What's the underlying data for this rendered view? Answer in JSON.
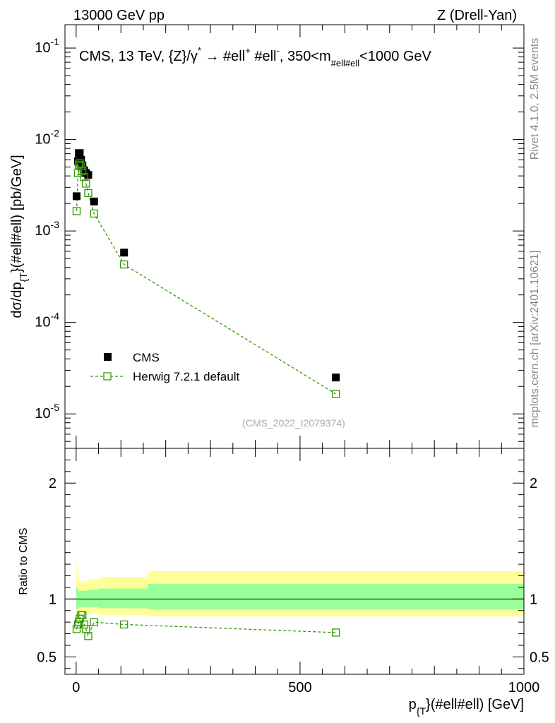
{
  "header": {
    "energy_label": "13000 GeV pp",
    "process_label": "Z (Drell-Yan)",
    "rivet_label": "Rivet 4.1.0,  2.5M events",
    "mcplots_label": "mcplots.cern.ch [arXiv:2401.10621]"
  },
  "chart_data": [
    {
      "type": "scatter",
      "panel": "main",
      "title": {
        "main": "CMS, 13 TeV, {Z}/γ",
        "star": "*",
        "arrow": " →  #ell",
        "plus": "+",
        "mid": " #ell",
        "minus": "-",
        "range_a": ", 350<m",
        "sub": "#ell#ell",
        "range_b": "<1000 GeV"
      },
      "ylabel": {
        "part1": "dσ/dp",
        "sub": "{T",
        "part2": "}(#ell#ell) [pb/GeV]"
      },
      "yscale": "log",
      "ylim": [
        4.2e-06,
        0.18
      ],
      "xlim": [
        -25,
        1000
      ],
      "ytick_labels": [
        {
          "base": "10",
          "exp": "-1",
          "value": 0.1
        },
        {
          "base": "10",
          "exp": "-2",
          "value": 0.01
        },
        {
          "base": "10",
          "exp": "-3",
          "value": 0.001
        },
        {
          "base": "10",
          "exp": "-4",
          "value": 0.0001
        },
        {
          "base": "10",
          "exp": "-5",
          "value": 1e-05
        }
      ],
      "watermark": "(CMS_2022_I2079374)",
      "legend_position": "lower-left",
      "series": [
        {
          "name": "CMS",
          "marker": "filled-square",
          "color": "#000000",
          "x": [
            1,
            4,
            6,
            8,
            11,
            14,
            18,
            22,
            27,
            40,
            107,
            580
          ],
          "y": [
            0.0024,
            0.0058,
            0.0071,
            0.0071,
            0.006,
            0.0052,
            0.0046,
            0.0043,
            0.0041,
            0.0021,
            0.00058,
            2.5e-05
          ]
        },
        {
          "name": "Herwig 7.2.1 default",
          "marker": "open-square-dashed-line",
          "color": "#339900",
          "x": [
            1,
            4,
            6,
            8,
            11,
            14,
            18,
            22,
            27,
            40,
            107,
            580
          ],
          "y": [
            0.00165,
            0.0043,
            0.0053,
            0.0055,
            0.0051,
            0.0045,
            0.0039,
            0.0033,
            0.0026,
            0.00155,
            0.00043,
            1.65e-05
          ]
        }
      ]
    },
    {
      "type": "scatter",
      "panel": "ratio",
      "ylabel": "Ratio to CMS",
      "ylim": [
        0.35,
        2.3
      ],
      "xlim": [
        -25,
        1000
      ],
      "xlabel": {
        "part1": "p",
        "sub": "{T",
        "part2": "}(#ell#ell) [GeV]"
      },
      "ytick_labels": [
        "0.5",
        "1",
        "2"
      ],
      "ytick_values": [
        0.5,
        1,
        2
      ],
      "xtick_labels": [
        "0",
        "500",
        "1000"
      ],
      "xtick_values": [
        0,
        500,
        1000
      ],
      "bands": [
        {
          "name": "total-uncertainty",
          "color": "#ffff99",
          "edges": [
            0,
            2,
            5,
            7,
            9,
            12,
            16,
            20,
            24,
            32,
            50,
            160,
            1000
          ],
          "lo": [
            0.87,
            0.86,
            0.87,
            0.88,
            0.88,
            0.88,
            0.88,
            0.88,
            0.87,
            0.87,
            0.86,
            0.85
          ],
          "hi": [
            1.3,
            1.22,
            1.17,
            1.16,
            1.15,
            1.15,
            1.15,
            1.15,
            1.17,
            1.17,
            1.19,
            1.24
          ]
        },
        {
          "name": "stat-uncertainty",
          "color": "#99ff99",
          "edges": [
            0,
            2,
            5,
            7,
            9,
            12,
            16,
            20,
            24,
            32,
            50,
            160,
            1000
          ],
          "lo": [
            0.91,
            0.92,
            0.93,
            0.93,
            0.93,
            0.93,
            0.93,
            0.93,
            0.93,
            0.93,
            0.92,
            0.91
          ],
          "hi": [
            1.1,
            1.09,
            1.07,
            1.07,
            1.07,
            1.07,
            1.07,
            1.07,
            1.08,
            1.08,
            1.09,
            1.13
          ]
        }
      ],
      "series": [
        {
          "name": "Herwig 7.2.1 default / CMS",
          "color": "#339900",
          "x": [
            1,
            4,
            6,
            8,
            11,
            14,
            18,
            22,
            27,
            40,
            107,
            580
          ],
          "y": [
            0.74,
            0.78,
            0.8,
            0.83,
            0.86,
            0.86,
            0.78,
            0.74,
            0.68,
            0.8,
            0.78,
            0.71
          ]
        }
      ]
    }
  ]
}
